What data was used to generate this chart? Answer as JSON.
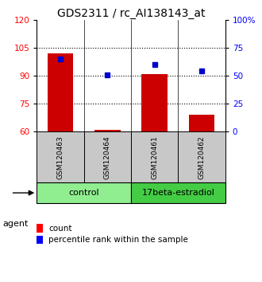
{
  "title": "GDS2311 / rc_AI138143_at",
  "samples": [
    "GSM120463",
    "GSM120464",
    "GSM120461",
    "GSM120462"
  ],
  "bar_color": "#CC0000",
  "dot_color": "#0000CC",
  "count_values": [
    102,
    61,
    91,
    69
  ],
  "percentile_values": [
    65,
    51,
    60,
    54
  ],
  "ylim_left": [
    60,
    120
  ],
  "ylim_right": [
    0,
    100
  ],
  "yticks_left": [
    60,
    75,
    90,
    105,
    120
  ],
  "yticks_right": [
    0,
    25,
    50,
    75,
    100
  ],
  "bar_bottom": 60,
  "legend_count_label": "count",
  "legend_pct_label": "percentile rank within the sample",
  "agent_label": "agent",
  "group_label_control": "control",
  "group_label_estradiol": "17beta-estradiol",
  "ctrl_color": "#90EE90",
  "estrad_color": "#44CC44",
  "sample_bg_color": "#C8C8C8",
  "title_fontsize": 10,
  "tick_fontsize": 7.5,
  "legend_fontsize": 7.5,
  "sample_label_fontsize": 6.5,
  "group_fontsize": 8,
  "agent_fontsize": 8
}
